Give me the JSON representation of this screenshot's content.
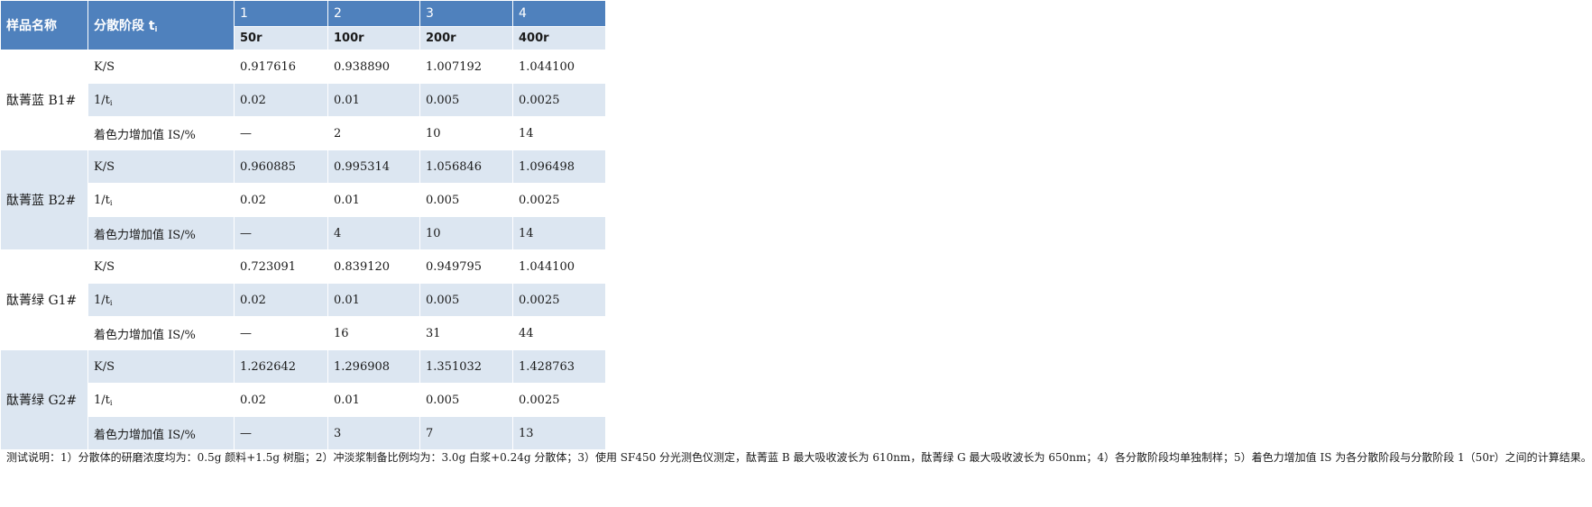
{
  "header": {
    "sample_name": "样品名称",
    "stage_label": "分散阶段 t",
    "stage_sub": "i",
    "stages": [
      {
        "num": "1",
        "speed": "50r"
      },
      {
        "num": "2",
        "speed": "100r"
      },
      {
        "num": "3",
        "speed": "200r"
      },
      {
        "num": "4",
        "speed": "400r"
      }
    ]
  },
  "samples": [
    {
      "name": "酞菁蓝 B1#",
      "rows": [
        {
          "label": "K/S",
          "values": [
            "0.917616",
            "0.938890",
            "1.007192",
            "1.044100"
          ]
        },
        {
          "label": "1/t",
          "label_sub": "i",
          "values": [
            "0.02",
            "0.01",
            "0.005",
            "0.0025"
          ]
        },
        {
          "label": "着色力增加值 IS/%",
          "values": [
            "—",
            "2",
            "10",
            "14"
          ]
        }
      ]
    },
    {
      "name": "酞菁蓝 B2#",
      "rows": [
        {
          "label": "K/S",
          "values": [
            "0.960885",
            "0.995314",
            "1.056846",
            "1.096498"
          ]
        },
        {
          "label": "1/t",
          "label_sub": "i",
          "values": [
            "0.02",
            "0.01",
            "0.005",
            "0.0025"
          ]
        },
        {
          "label": "着色力增加值 IS/%",
          "values": [
            "—",
            "4",
            "10",
            "14"
          ]
        }
      ]
    },
    {
      "name": "酞菁绿 G1#",
      "rows": [
        {
          "label": "K/S",
          "values": [
            "0.723091",
            "0.839120",
            "0.949795",
            "1.044100"
          ]
        },
        {
          "label": "1/t",
          "label_sub": "i",
          "values": [
            "0.02",
            "0.01",
            "0.005",
            "0.0025"
          ]
        },
        {
          "label": "着色力增加值 IS/%",
          "values": [
            "—",
            "16",
            "31",
            "44"
          ]
        }
      ]
    },
    {
      "name": "酞菁绿 G2#",
      "rows": [
        {
          "label": "K/S",
          "values": [
            "1.262642",
            "1.296908",
            "1.351032",
            "1.428763"
          ]
        },
        {
          "label": "1/t",
          "label_sub": "i",
          "values": [
            "0.02",
            "0.01",
            "0.005",
            "0.0025"
          ]
        },
        {
          "label": "着色力增加值 IS/%",
          "values": [
            "—",
            "3",
            "7",
            "13"
          ]
        }
      ]
    }
  ],
  "note": "测试说明：1）分散体的研磨浓度均为：0.5g 颜料+1.5g 树脂；2）冲淡浆制备比例均为：3.0g 白浆+0.24g 分散体；3）使用 SF450 分光测色仪测定，酞菁蓝 B 最大吸收波长为 610nm，酞菁绿 G 最大吸收波长为 650nm；4）各分散阶段均单独制样；5）着色力增加值 IS 为各分散阶段与分散阶段 1（50r）之间的计算结果。",
  "colors": {
    "header_blue": "#4f81bd",
    "band_light_blue": "#dce6f1",
    "band_white": "#ffffff"
  }
}
